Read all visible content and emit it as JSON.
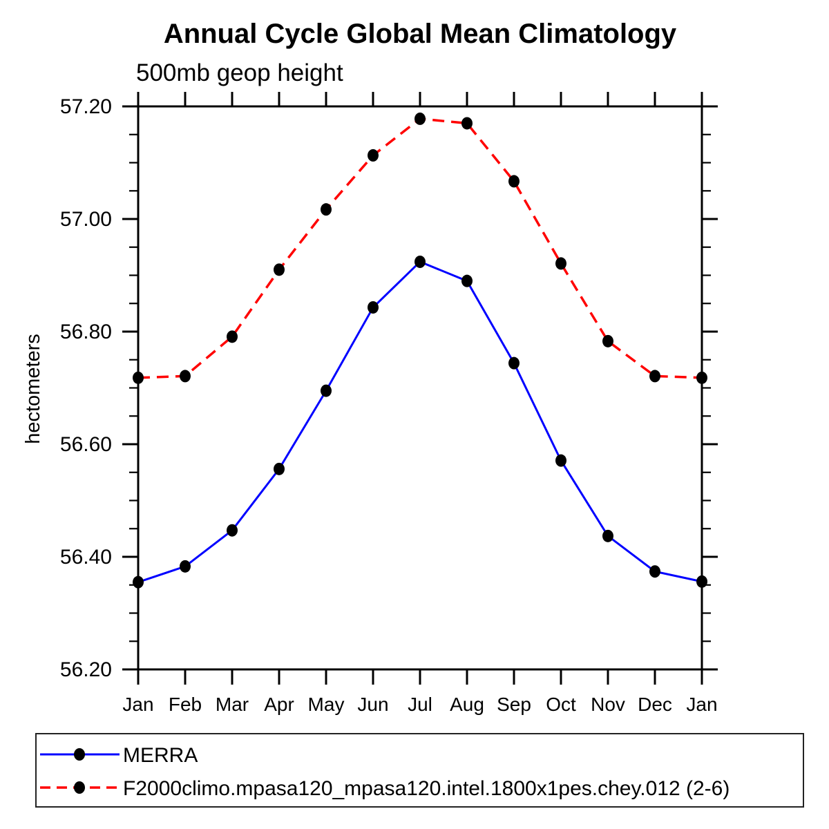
{
  "chart_data": {
    "type": "line",
    "title": "Annual Cycle Global Mean Climatology",
    "subtitle": "500mb geop height",
    "ylabel": "hectometers",
    "xlabel": "",
    "categories": [
      "Jan",
      "Feb",
      "Mar",
      "Apr",
      "May",
      "Jun",
      "Jul",
      "Aug",
      "Sep",
      "Oct",
      "Nov",
      "Dec",
      "Jan"
    ],
    "series": [
      {
        "name": "MERRA",
        "line_color": "#0000ff",
        "line_style": "solid",
        "marker": "filled-circle",
        "marker_color": "#000000",
        "values": [
          56.355,
          56.383,
          56.447,
          56.556,
          56.695,
          56.843,
          56.924,
          56.89,
          56.744,
          56.571,
          56.437,
          56.374,
          56.356
        ]
      },
      {
        "name": "F2000climo.mpasa120_mpasa120.intel.1800x1pes.chey.012 (2-6)",
        "line_color": "#ff0000",
        "line_style": "dashed",
        "marker": "filled-circle",
        "marker_color": "#000000",
        "values": [
          56.718,
          56.721,
          56.791,
          56.91,
          57.017,
          57.113,
          57.178,
          57.17,
          57.067,
          56.921,
          56.783,
          56.721,
          56.718
        ]
      }
    ],
    "ylim": [
      56.2,
      57.2
    ],
    "ytick_major_interval": 0.2,
    "ytick_minor_interval": 0.05,
    "ytick_labels": [
      "56.20",
      "56.40",
      "56.60",
      "56.80",
      "57.00",
      "57.20"
    ],
    "grid": false,
    "legend_position": "bottom-box",
    "axis_color": "#000000",
    "background_color": "#ffffff"
  }
}
